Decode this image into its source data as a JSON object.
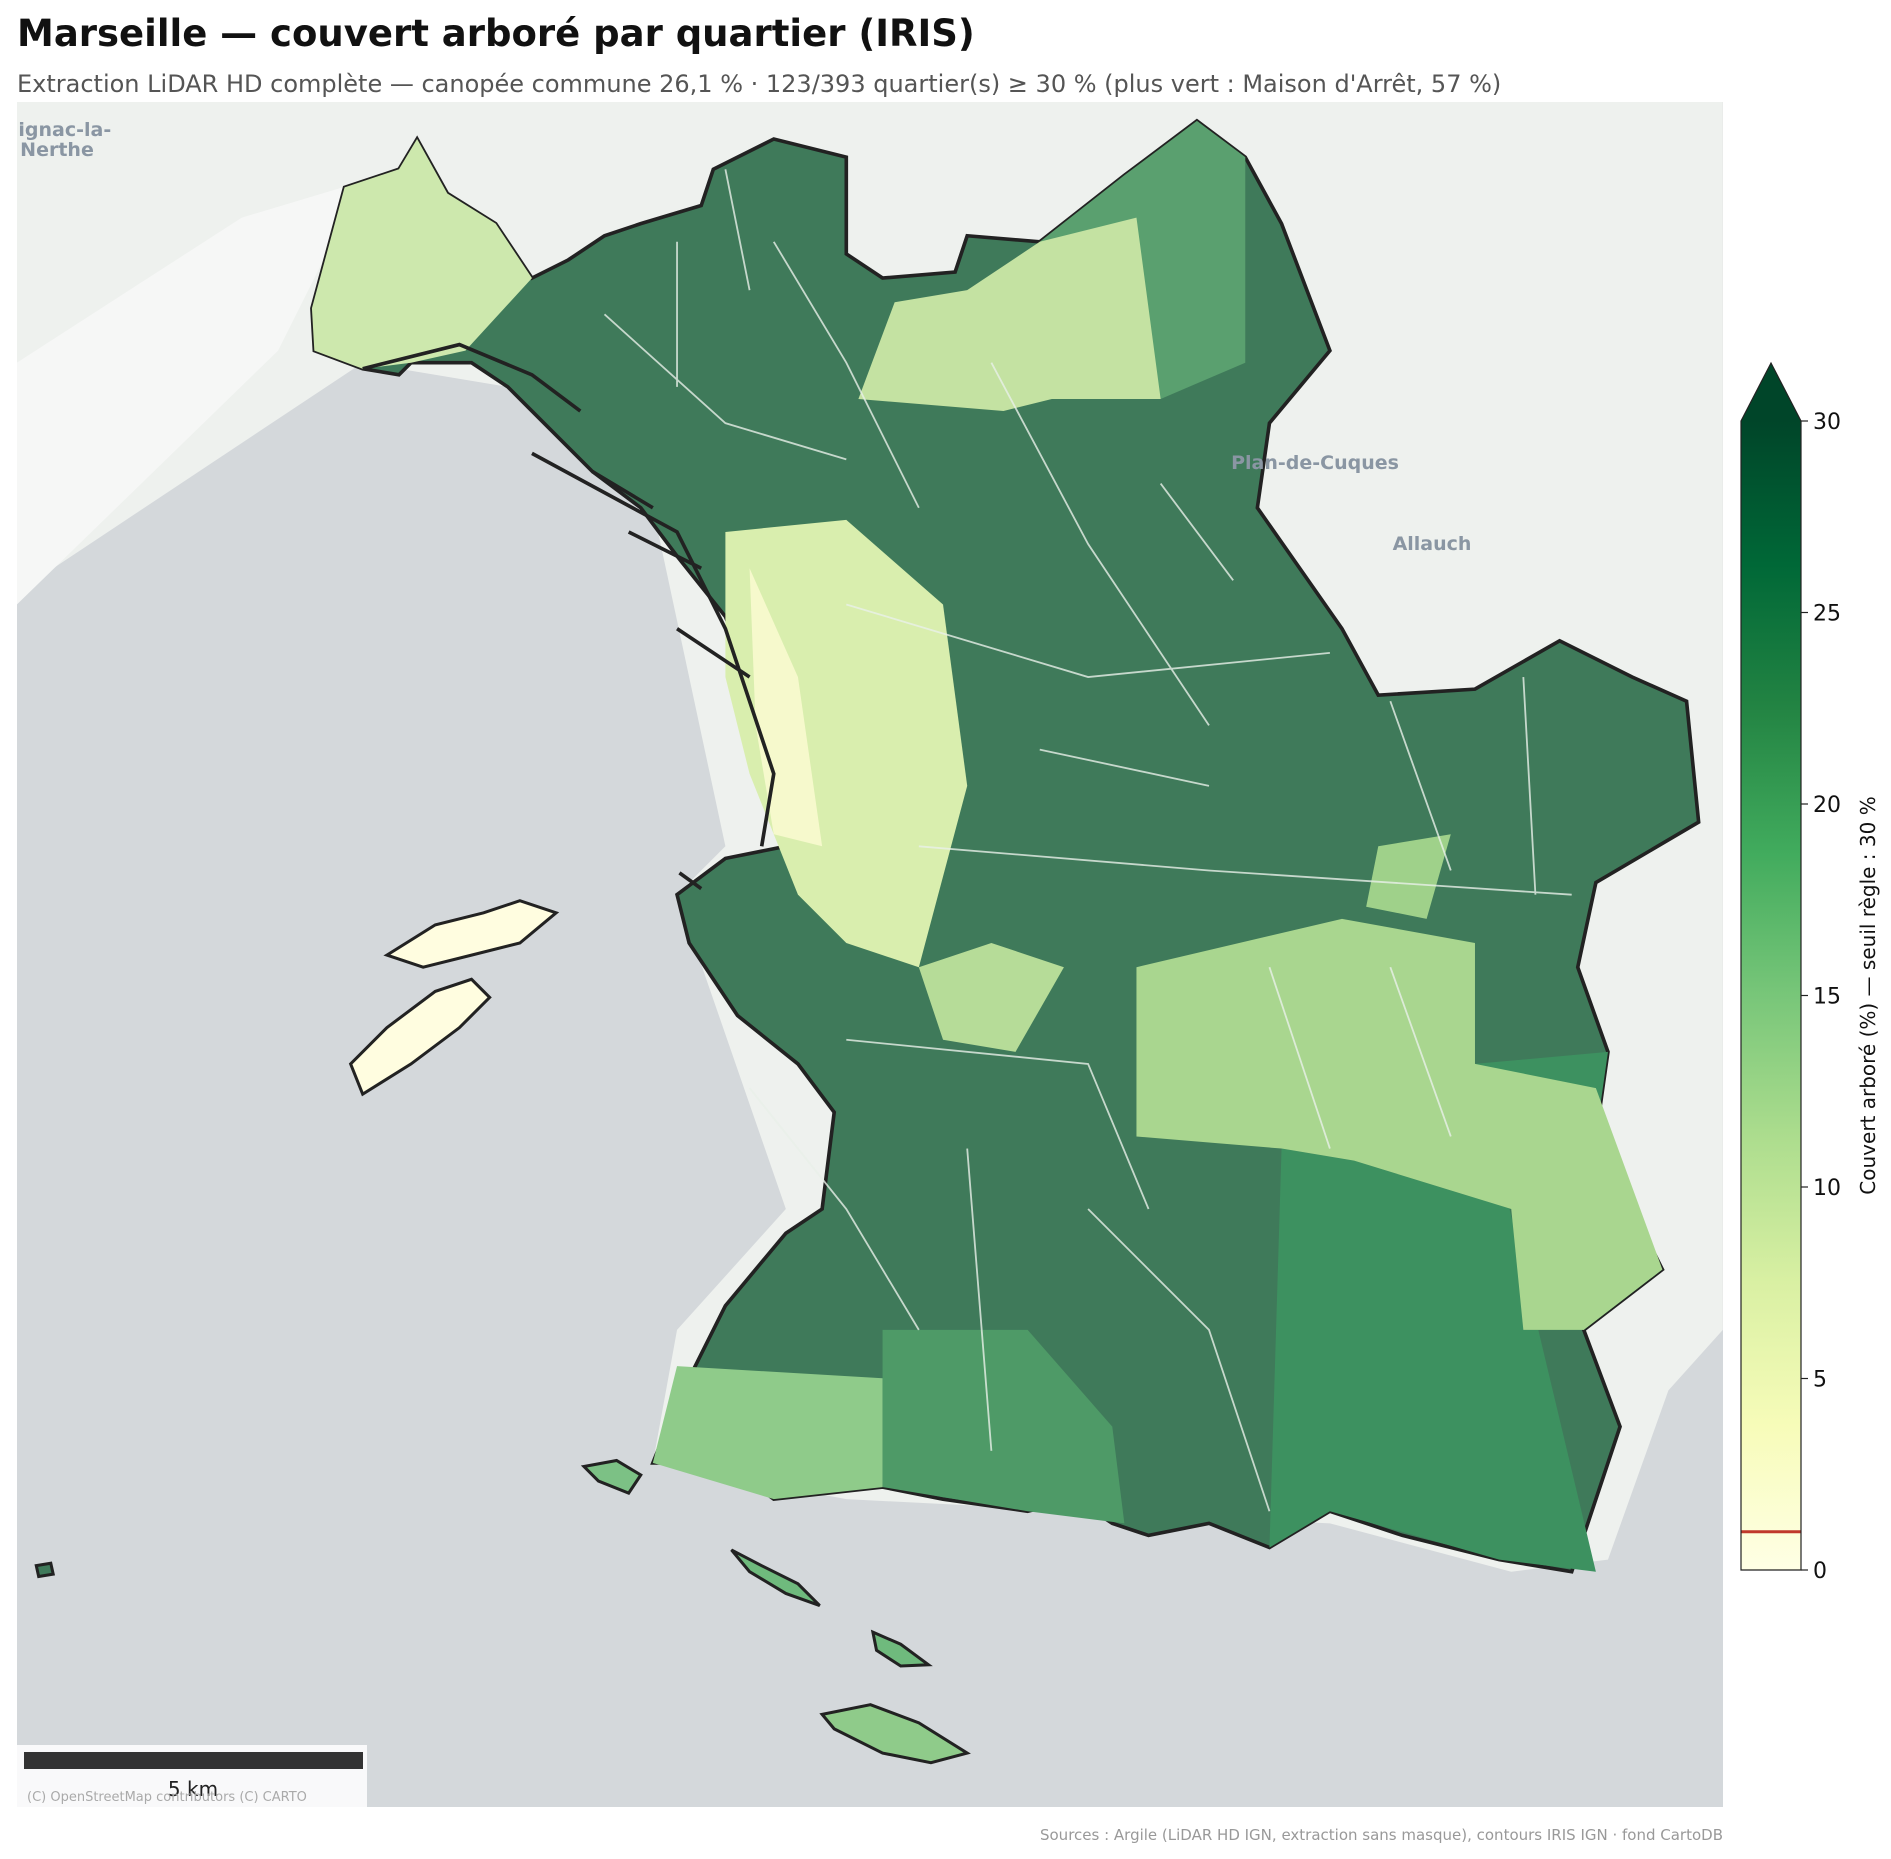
{
  "chart_data": {
    "type": "map",
    "title": "Marseille — couvert arboré par quartier (IRIS)",
    "subtitle": "Extraction LiDAR HD complète — canopée commune 26,1 % · 123/393 quartier(s) ≥ 30 % (plus vert : Maison d'Arrêt, 57 %)",
    "colorbar": {
      "label": "Couvert arboré (%) — seuil règle : 30 %",
      "lim": [
        0,
        30
      ],
      "ticks": [
        0,
        5,
        10,
        15,
        20,
        25,
        30
      ],
      "extend": "max",
      "threshold": 1,
      "threshold_color": "#c0392b",
      "colors": [
        "#ffffe5",
        "#f7fcb9",
        "#d9f0a3",
        "#addd8e",
        "#78c679",
        "#41ab5d",
        "#238443",
        "#006837",
        "#004529"
      ]
    },
    "basemap_labels": [
      "Gignac-la-",
      "Nerthe",
      "Plan-de-Cuques",
      "Allauch"
    ],
    "scale_bar": "5 km",
    "attribution": "(C) OpenStreetMap contributors (C) CARTO",
    "source": "Sources : Argile (LiDAR HD IGN, extraction sans masque), contours IRIS IGN · fond CartoDB"
  }
}
